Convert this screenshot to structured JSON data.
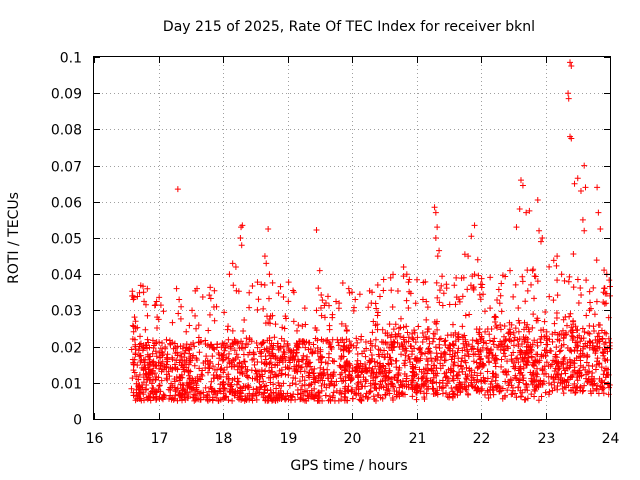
{
  "chart_data": {
    "type": "scatter",
    "title": "Day 215 of 2025, Rate Of TEC Index for receiver bknl",
    "xlabel": "GPS time / hours",
    "ylabel": "ROTI / TECUs",
    "xlim": [
      16,
      24
    ],
    "ylim": [
      0,
      0.1
    ],
    "grid": true,
    "x_ticks": [
      "16",
      "17",
      "18",
      "19",
      "20",
      "21",
      "22",
      "23",
      "24"
    ],
    "y_ticks": [
      "0",
      "0.01",
      "0.02",
      "0.03",
      "0.04",
      "0.05",
      "0.06",
      "0.07",
      "0.08",
      "0.09",
      "0.1"
    ],
    "marker": "+",
    "color": "#ff0000",
    "data_start_hour": 16.58,
    "data_end_hour": 24.0,
    "typical_range": [
      0.005,
      0.03
    ],
    "series": [
      {
        "name": "ROTI",
        "points": [
          [
            16.6,
            0.034
          ],
          [
            16.61,
            0.033
          ],
          [
            16.62,
            0.0335
          ],
          [
            17.3,
            0.0635
          ],
          [
            17.28,
            0.036
          ],
          [
            17.32,
            0.033
          ],
          [
            17.35,
            0.031
          ],
          [
            17.52,
            0.03
          ],
          [
            17.9,
            0.031
          ],
          [
            18.1,
            0.04
          ],
          [
            18.15,
            0.043
          ],
          [
            18.2,
            0.042
          ],
          [
            18.28,
            0.053
          ],
          [
            18.3,
            0.0535
          ],
          [
            18.27,
            0.05
          ],
          [
            18.29,
            0.048
          ],
          [
            18.65,
            0.045
          ],
          [
            18.67,
            0.043
          ],
          [
            18.7,
            0.0525
          ],
          [
            18.72,
            0.04
          ],
          [
            19.1,
            0.035
          ],
          [
            19.45,
            0.0522
          ],
          [
            19.5,
            0.041
          ],
          [
            19.45,
            0.03
          ],
          [
            19.8,
            0.032
          ],
          [
            19.95,
            0.036
          ],
          [
            20.0,
            0.035
          ],
          [
            20.05,
            0.033
          ],
          [
            20.4,
            0.037
          ],
          [
            20.6,
            0.039
          ],
          [
            20.8,
            0.042
          ],
          [
            20.85,
            0.04
          ],
          [
            21.1,
            0.033
          ],
          [
            21.28,
            0.0585
          ],
          [
            21.3,
            0.057
          ],
          [
            21.32,
            0.053
          ],
          [
            21.3,
            0.05
          ],
          [
            21.35,
            0.0465
          ],
          [
            21.33,
            0.045
          ],
          [
            21.75,
            0.0455
          ],
          [
            21.8,
            0.045
          ],
          [
            21.85,
            0.0505
          ],
          [
            21.9,
            0.0535
          ],
          [
            21.95,
            0.044
          ],
          [
            21.9,
            0.04
          ],
          [
            22.45,
            0.041
          ],
          [
            22.55,
            0.053
          ],
          [
            22.6,
            0.058
          ],
          [
            22.62,
            0.066
          ],
          [
            22.65,
            0.0645
          ],
          [
            22.7,
            0.057
          ],
          [
            22.75,
            0.0575
          ],
          [
            22.8,
            0.041
          ],
          [
            22.88,
            0.0605
          ],
          [
            22.9,
            0.052
          ],
          [
            22.95,
            0.05
          ],
          [
            22.93,
            0.049
          ],
          [
            23.18,
            0.045
          ],
          [
            23.25,
            0.04
          ],
          [
            23.35,
            0.09
          ],
          [
            23.36,
            0.0885
          ],
          [
            23.38,
            0.078
          ],
          [
            23.4,
            0.0775
          ],
          [
            23.38,
            0.0985
          ],
          [
            23.4,
            0.0975
          ],
          [
            23.45,
            0.065
          ],
          [
            23.5,
            0.0665
          ],
          [
            23.55,
            0.063
          ],
          [
            23.6,
            0.07
          ],
          [
            23.62,
            0.064
          ],
          [
            23.58,
            0.055
          ],
          [
            23.6,
            0.052
          ],
          [
            23.8,
            0.064
          ],
          [
            23.82,
            0.057
          ],
          [
            23.85,
            0.0525
          ],
          [
            23.9,
            0.035
          ],
          [
            23.95,
            0.04
          ],
          [
            24.0,
            0.034
          ],
          [
            23.98,
            0.028
          ]
        ]
      }
    ]
  }
}
